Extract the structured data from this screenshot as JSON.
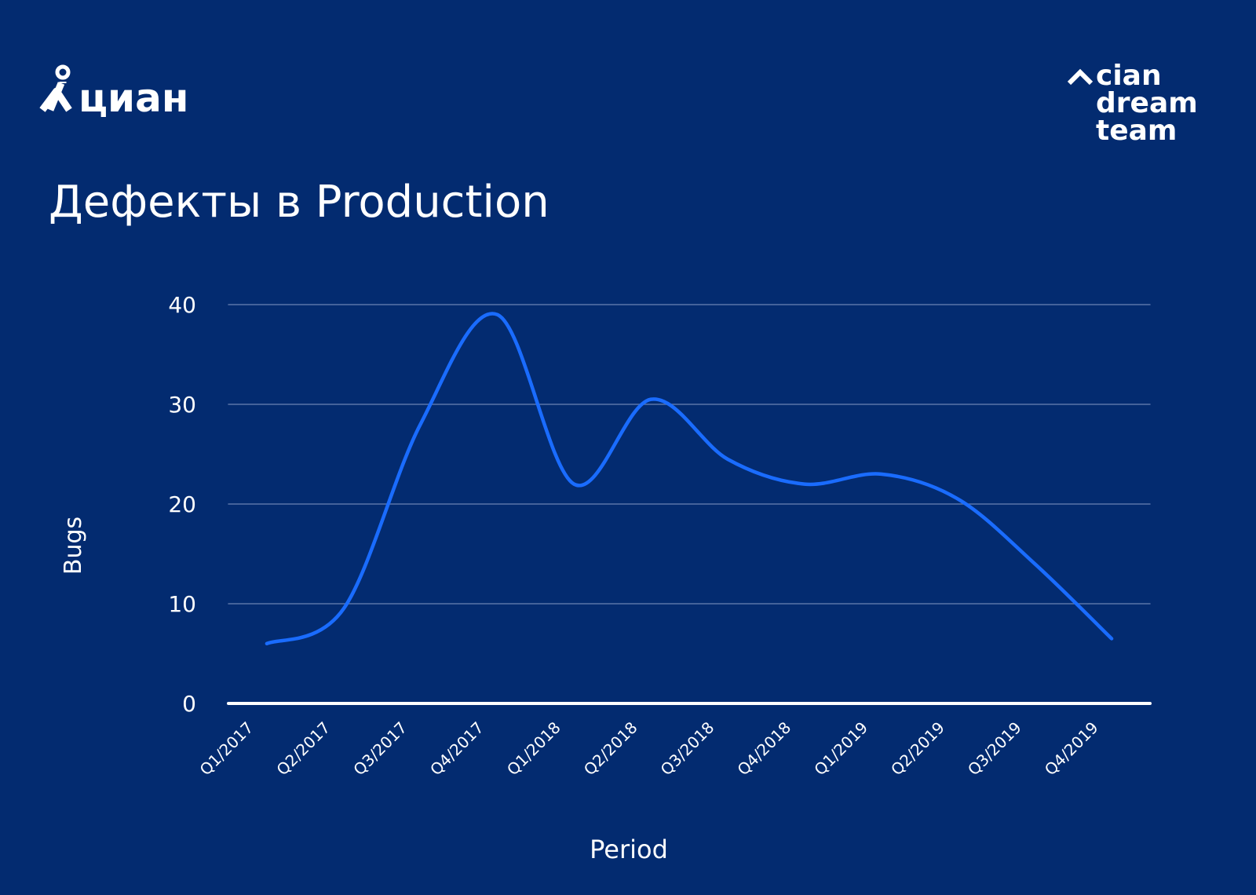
{
  "logo": "циан",
  "brand": [
    "cian",
    "dream",
    "team"
  ],
  "chart_data": {
    "type": "line",
    "title": "Дефекты в Production",
    "x_label": "Period",
    "y_label": "Bugs",
    "categories": [
      "Q1/2017",
      "Q2/2017",
      "Q3/2017",
      "Q4/2017",
      "Q1/2018",
      "Q2/2018",
      "Q3/2018",
      "Q4/2018",
      "Q1/2019",
      "Q2/2019",
      "Q3/2019",
      "Q4/2019"
    ],
    "series": [
      {
        "name": "Bugs",
        "color": "#1a6cff",
        "values": [
          6,
          9.5,
          28,
          39,
          22,
          30.5,
          24.5,
          22,
          23,
          20.5,
          14,
          6.5
        ]
      }
    ],
    "ylim": [
      0,
      40
    ],
    "yticks": [
      0,
      10,
      20,
      30,
      40
    ],
    "grid": true,
    "smooth": true
  }
}
